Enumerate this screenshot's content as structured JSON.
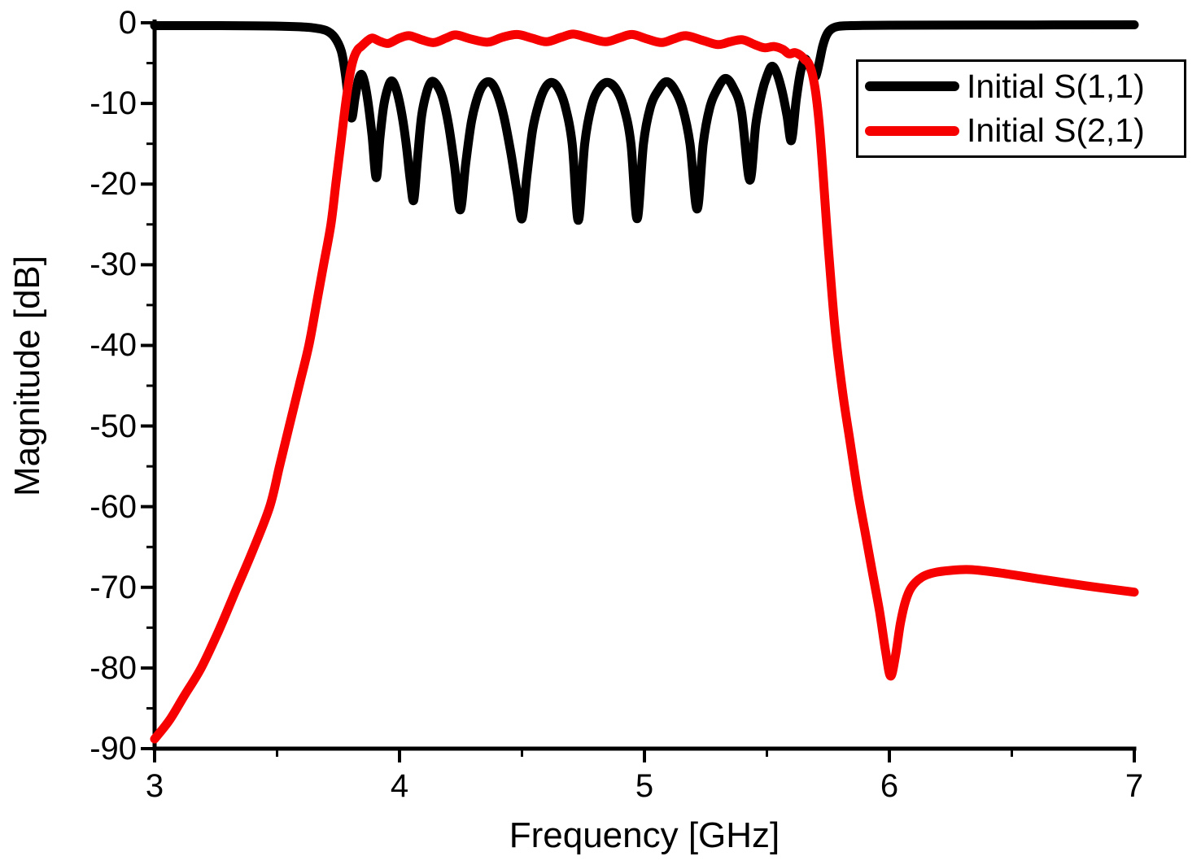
{
  "chart_data": {
    "type": "line",
    "title": "",
    "xlabel": "Frequency [GHz]",
    "ylabel": "Magnitude [dB]",
    "xlim": [
      3,
      7
    ],
    "ylim": [
      -90,
      0
    ],
    "grid": false,
    "legend_position": "top-right",
    "background": "#ffffff",
    "axis_color": "#000000",
    "x_major_ticks": [
      3,
      4,
      5,
      6,
      7
    ],
    "x_tick_labels": [
      "3",
      "4",
      "5",
      "6",
      "7"
    ],
    "x_minor_ticks": [
      3.5,
      4.5,
      5.5,
      6.5
    ],
    "y_major_ticks": [
      0,
      -10,
      -20,
      -30,
      -40,
      -50,
      -60,
      -70,
      -80,
      -90
    ],
    "y_tick_labels": [
      "0",
      "-10",
      "-20",
      "-30",
      "-40",
      "-50",
      "-60",
      "-70",
      "-80",
      "-90"
    ],
    "y_minor_ticks": [
      -5,
      -15,
      -25,
      -35,
      -45,
      -55,
      -65,
      -75,
      -85
    ],
    "series": [
      {
        "name": "Initial S(1,1)",
        "color": "#000000",
        "width": 11,
        "points": [
          [
            3.0,
            -0.35
          ],
          [
            3.2,
            -0.35
          ],
          [
            3.4,
            -0.38
          ],
          [
            3.55,
            -0.45
          ],
          [
            3.64,
            -0.6
          ],
          [
            3.7,
            -0.95
          ],
          [
            3.735,
            -1.8
          ],
          [
            3.762,
            -3.5
          ],
          [
            3.778,
            -6.2
          ],
          [
            3.792,
            -9.6
          ],
          [
            3.805,
            -11.8
          ],
          [
            3.818,
            -9.4
          ],
          [
            3.832,
            -7.1
          ],
          [
            3.845,
            -6.4
          ],
          [
            3.858,
            -7.5
          ],
          [
            3.872,
            -10
          ],
          [
            3.888,
            -14
          ],
          [
            3.905,
            -19.2
          ],
          [
            3.92,
            -14.3
          ],
          [
            3.935,
            -10.4
          ],
          [
            3.952,
            -8.1
          ],
          [
            3.968,
            -7.2
          ],
          [
            3.986,
            -8.2
          ],
          [
            4.005,
            -10.6
          ],
          [
            4.025,
            -14.5
          ],
          [
            4.044,
            -19.5
          ],
          [
            4.058,
            -22
          ],
          [
            4.073,
            -17
          ],
          [
            4.09,
            -11.6
          ],
          [
            4.11,
            -8.7
          ],
          [
            4.13,
            -7.3
          ],
          [
            4.152,
            -7.7
          ],
          [
            4.176,
            -9.3
          ],
          [
            4.2,
            -12.6
          ],
          [
            4.225,
            -17.8
          ],
          [
            4.248,
            -23.2
          ],
          [
            4.27,
            -17.5
          ],
          [
            4.294,
            -12.2
          ],
          [
            4.32,
            -9.1
          ],
          [
            4.345,
            -7.6
          ],
          [
            4.372,
            -7.4
          ],
          [
            4.398,
            -8.7
          ],
          [
            4.426,
            -11.6
          ],
          [
            4.455,
            -16.2
          ],
          [
            4.48,
            -21
          ],
          [
            4.5,
            -24.3
          ],
          [
            4.52,
            -19
          ],
          [
            4.544,
            -13.2
          ],
          [
            4.57,
            -9.9
          ],
          [
            4.596,
            -8.0
          ],
          [
            4.622,
            -7.4
          ],
          [
            4.648,
            -8.1
          ],
          [
            4.676,
            -10.3
          ],
          [
            4.705,
            -15
          ],
          [
            4.73,
            -24.5
          ],
          [
            4.756,
            -15
          ],
          [
            4.784,
            -10.3
          ],
          [
            4.814,
            -8.2
          ],
          [
            4.848,
            -7.4
          ],
          [
            4.884,
            -8.2
          ],
          [
            4.916,
            -10.5
          ],
          [
            4.945,
            -15
          ],
          [
            4.97,
            -24.3
          ],
          [
            4.996,
            -15
          ],
          [
            5.024,
            -10.5
          ],
          [
            5.056,
            -8.4
          ],
          [
            5.09,
            -7.3
          ],
          [
            5.124,
            -8.3
          ],
          [
            5.156,
            -10.6
          ],
          [
            5.186,
            -15
          ],
          [
            5.215,
            -23.1
          ],
          [
            5.24,
            -15
          ],
          [
            5.266,
            -10.6
          ],
          [
            5.296,
            -8.3
          ],
          [
            5.33,
            -6.9
          ],
          [
            5.362,
            -8.0
          ],
          [
            5.396,
            -11
          ],
          [
            5.43,
            -19.5
          ],
          [
            5.455,
            -12.5
          ],
          [
            5.48,
            -8.6
          ],
          [
            5.5,
            -6.6
          ],
          [
            5.52,
            -5.4
          ],
          [
            5.54,
            -6.2
          ],
          [
            5.562,
            -8.5
          ],
          [
            5.582,
            -11.5
          ],
          [
            5.6,
            -14.6
          ],
          [
            5.62,
            -9.5
          ],
          [
            5.638,
            -6.0
          ],
          [
            5.655,
            -4.5
          ],
          [
            5.672,
            -5.3
          ],
          [
            5.688,
            -6.3
          ],
          [
            5.7,
            -6.6
          ],
          [
            5.714,
            -4.9
          ],
          [
            5.728,
            -2.9
          ],
          [
            5.744,
            -1.5
          ],
          [
            5.762,
            -0.8
          ],
          [
            5.79,
            -0.45
          ],
          [
            5.85,
            -0.35
          ],
          [
            6.0,
            -0.3
          ],
          [
            6.4,
            -0.28
          ],
          [
            7.0,
            -0.25
          ]
        ]
      },
      {
        "name": "Initial S(2,1)",
        "color": "#f70000",
        "width": 11,
        "points": [
          [
            3.0,
            -88.8
          ],
          [
            3.06,
            -86.5
          ],
          [
            3.12,
            -83.5
          ],
          [
            3.19,
            -80
          ],
          [
            3.26,
            -75.5
          ],
          [
            3.33,
            -70.5
          ],
          [
            3.4,
            -65.5
          ],
          [
            3.47,
            -60
          ],
          [
            3.51,
            -55
          ],
          [
            3.55,
            -50
          ],
          [
            3.59,
            -45
          ],
          [
            3.63,
            -40
          ],
          [
            3.66,
            -35
          ],
          [
            3.69,
            -30
          ],
          [
            3.72,
            -25
          ],
          [
            3.74,
            -20
          ],
          [
            3.76,
            -15
          ],
          [
            3.78,
            -10
          ],
          [
            3.8,
            -6
          ],
          [
            3.815,
            -4.2
          ],
          [
            3.83,
            -3.3
          ],
          [
            3.845,
            -2.9
          ],
          [
            3.87,
            -2.2
          ],
          [
            3.89,
            -1.9
          ],
          [
            3.92,
            -2.3
          ],
          [
            3.955,
            -2.55
          ],
          [
            4.0,
            -1.9
          ],
          [
            4.04,
            -1.6
          ],
          [
            4.09,
            -2.1
          ],
          [
            4.14,
            -2.45
          ],
          [
            4.19,
            -1.9
          ],
          [
            4.23,
            -1.5
          ],
          [
            4.29,
            -2.0
          ],
          [
            4.36,
            -2.4
          ],
          [
            4.42,
            -1.8
          ],
          [
            4.48,
            -1.45
          ],
          [
            4.54,
            -1.9
          ],
          [
            4.6,
            -2.35
          ],
          [
            4.66,
            -1.8
          ],
          [
            4.71,
            -1.4
          ],
          [
            4.77,
            -1.85
          ],
          [
            4.84,
            -2.35
          ],
          [
            4.9,
            -1.85
          ],
          [
            4.95,
            -1.45
          ],
          [
            5.01,
            -2.0
          ],
          [
            5.07,
            -2.45
          ],
          [
            5.12,
            -2.0
          ],
          [
            5.17,
            -1.6
          ],
          [
            5.24,
            -2.2
          ],
          [
            5.3,
            -2.7
          ],
          [
            5.35,
            -2.35
          ],
          [
            5.4,
            -2.1
          ],
          [
            5.45,
            -2.7
          ],
          [
            5.49,
            -3.1
          ],
          [
            5.53,
            -2.95
          ],
          [
            5.565,
            -3.3
          ],
          [
            5.59,
            -3.85
          ],
          [
            5.615,
            -3.7
          ],
          [
            5.64,
            -4.1
          ],
          [
            5.655,
            -4.6
          ],
          [
            5.67,
            -5.0
          ],
          [
            5.685,
            -6.3
          ],
          [
            5.7,
            -8.8
          ],
          [
            5.715,
            -13
          ],
          [
            5.73,
            -19
          ],
          [
            5.745,
            -25.5
          ],
          [
            5.76,
            -31.5
          ],
          [
            5.78,
            -38.5
          ],
          [
            5.81,
            -46
          ],
          [
            5.84,
            -52
          ],
          [
            5.87,
            -58
          ],
          [
            5.9,
            -63
          ],
          [
            5.93,
            -68
          ],
          [
            5.96,
            -73
          ],
          [
            5.985,
            -78
          ],
          [
            6.005,
            -81
          ],
          [
            6.025,
            -78.5
          ],
          [
            6.045,
            -74.5
          ],
          [
            6.065,
            -71.8
          ],
          [
            6.09,
            -70
          ],
          [
            6.13,
            -68.8
          ],
          [
            6.18,
            -68.2
          ],
          [
            6.25,
            -67.9
          ],
          [
            6.33,
            -67.8
          ],
          [
            6.45,
            -68.2
          ],
          [
            6.6,
            -68.9
          ],
          [
            6.8,
            -69.8
          ],
          [
            7.0,
            -70.6
          ]
        ]
      }
    ]
  }
}
